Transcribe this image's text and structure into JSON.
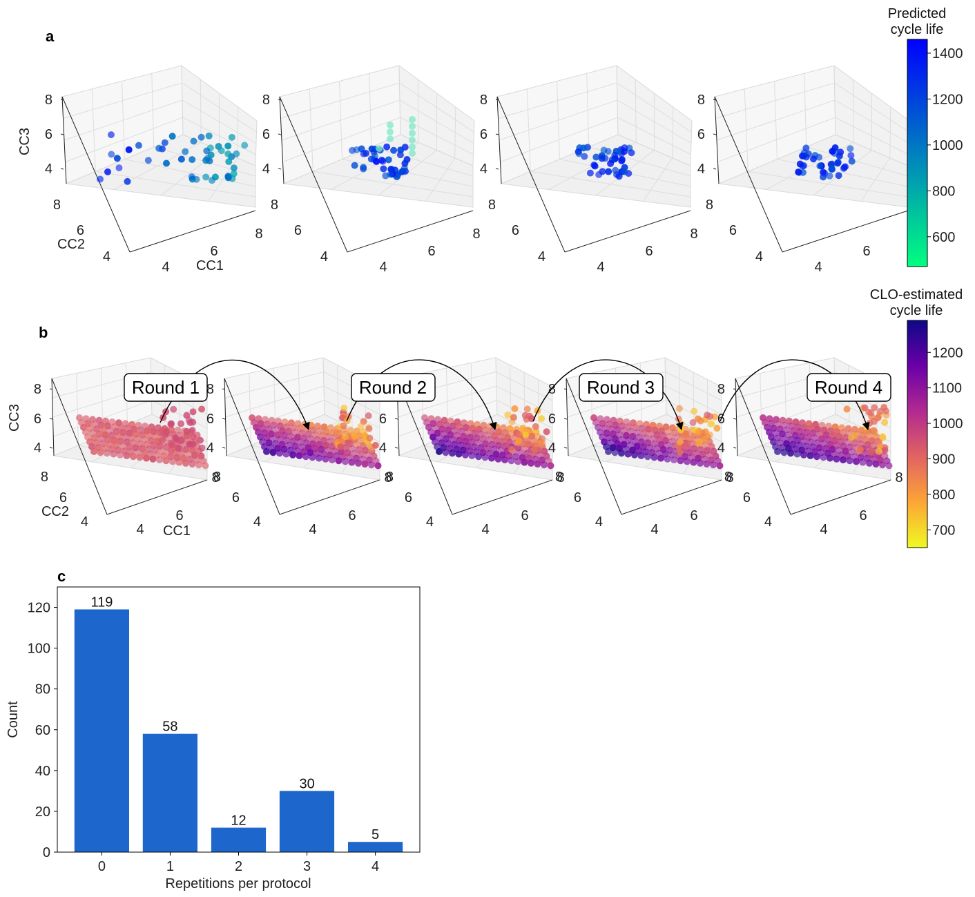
{
  "panels": {
    "a": {
      "letter": "a",
      "axes": {
        "x_label": "CC1",
        "y_label": "CC2",
        "z_label": "CC3",
        "x_ticks": [
          "4",
          "6",
          "8"
        ],
        "y_ticks": [
          "4",
          "6",
          "8"
        ],
        "z_ticks": [
          "4",
          "6",
          "8"
        ]
      },
      "colorbar": {
        "title_line1": "Predicted",
        "title_line2": "cycle life",
        "ticks": [
          "600",
          "800",
          "1000",
          "1200",
          "1400"
        ],
        "tick_values": [
          600,
          800,
          1000,
          1200,
          1400
        ],
        "range": [
          470,
          1460
        ],
        "colormap": "winter"
      }
    },
    "b": {
      "letter": "b",
      "axes": {
        "x_label": "CC1",
        "y_label": "CC2",
        "z_label": "CC3",
        "x_ticks": [
          "4",
          "6",
          "8"
        ],
        "y_ticks": [
          "4",
          "6",
          "8"
        ],
        "z_ticks": [
          "4",
          "6",
          "8"
        ]
      },
      "rounds": [
        "Round 1",
        "Round 2",
        "Round 3",
        "Round 4"
      ],
      "colorbar": {
        "title_line1": "CLO-estimated",
        "title_line2": "cycle life",
        "ticks": [
          "700",
          "800",
          "900",
          "1000",
          "1100",
          "1200"
        ],
        "tick_values": [
          700,
          800,
          900,
          1000,
          1100,
          1200
        ],
        "range": [
          650,
          1290
        ],
        "colormap": "plasma_r"
      }
    },
    "c": {
      "letter": "c"
    }
  },
  "chart_data": [
    {
      "type": "scatter",
      "panel": "a",
      "title": "",
      "xlabel": "CC1",
      "ylabel": "CC2",
      "zlabel": "CC3",
      "xlim": [
        3,
        8
      ],
      "ylim": [
        3,
        8
      ],
      "zlim": [
        3,
        8
      ],
      "subplots": 4,
      "color_by": "Predicted cycle life"
    },
    {
      "type": "scatter",
      "panel": "b",
      "title": "",
      "xlabel": "CC1",
      "ylabel": "CC2",
      "zlabel": "CC3",
      "xlim": [
        3,
        8
      ],
      "ylim": [
        3,
        8
      ],
      "zlim": [
        3,
        8
      ],
      "subplots": 5,
      "color_by": "CLO-estimated cycle life"
    },
    {
      "type": "bar",
      "panel": "c",
      "categories": [
        "0",
        "1",
        "2",
        "3",
        "4"
      ],
      "values": [
        119,
        58,
        12,
        30,
        5
      ],
      "data_labels": [
        "119",
        "58",
        "12",
        "30",
        "5"
      ],
      "xlabel": "Repetitions per protocol",
      "ylabel": "Count",
      "ylim": [
        0,
        130
      ],
      "yticks": [
        0,
        20,
        40,
        60,
        80,
        100,
        120
      ],
      "bar_color": "#1c66cc"
    }
  ]
}
